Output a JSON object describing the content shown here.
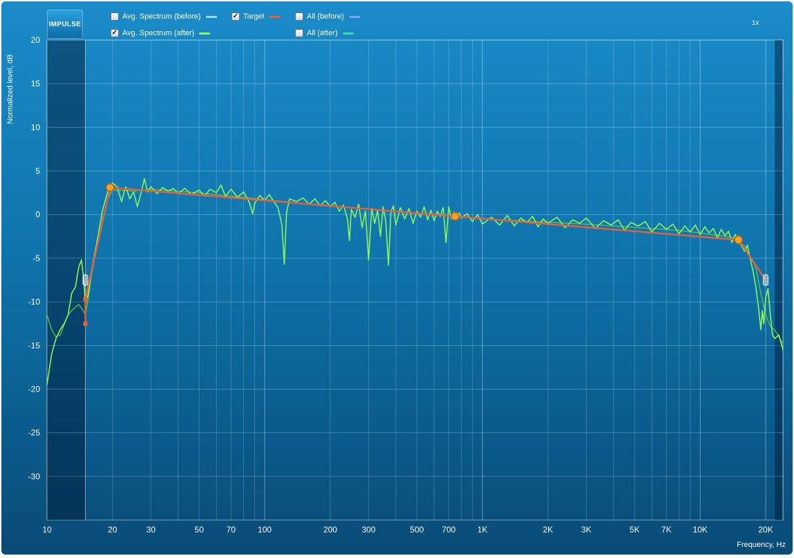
{
  "app": {
    "logo_text": "IMPULSE",
    "zoom_label": "1x"
  },
  "legend": [
    {
      "label": "Avg. Spectrum (before)",
      "checked": false,
      "color": "#9fd8f2"
    },
    {
      "label": "Target",
      "checked": true,
      "color": "#e8603a"
    },
    {
      "label": "All (before)",
      "checked": false,
      "color": "#7f9ef5"
    },
    {
      "label": "Avg. Spectrum (after)",
      "checked": true,
      "color": "#8cf55a"
    },
    {
      "label": "All (after)",
      "checked": false,
      "color": "#3fd7a4"
    }
  ],
  "chart_data": {
    "type": "line",
    "xscale": "log",
    "xlim": [
      10,
      24000
    ],
    "ylim": [
      -35,
      20
    ],
    "xlabel": "Frequency, Hz",
    "ylabel": "Normalized level, dB",
    "grid": true,
    "x_tick_labels": [
      {
        "value": 10,
        "label": "10"
      },
      {
        "value": 20,
        "label": "20"
      },
      {
        "value": 30,
        "label": "30"
      },
      {
        "value": 50,
        "label": "50"
      },
      {
        "value": 70,
        "label": "70"
      },
      {
        "value": 100,
        "label": "100"
      },
      {
        "value": 200,
        "label": "200"
      },
      {
        "value": 300,
        "label": "300"
      },
      {
        "value": 500,
        "label": "500"
      },
      {
        "value": 700,
        "label": "700"
      },
      {
        "value": 1000,
        "label": "1K"
      },
      {
        "value": 2000,
        "label": "2K"
      },
      {
        "value": 3000,
        "label": "3K"
      },
      {
        "value": 5000,
        "label": "5K"
      },
      {
        "value": 7000,
        "label": "7K"
      },
      {
        "value": 10000,
        "label": "10K"
      },
      {
        "value": 20000,
        "label": "20K"
      }
    ],
    "y_ticks": [
      20,
      15,
      10,
      5,
      0,
      -5,
      -10,
      -15,
      -20,
      -25,
      -30
    ],
    "excluded_ranges": [
      [
        10,
        15
      ],
      [
        22000,
        24000
      ]
    ],
    "target": {
      "color": "#e8603a",
      "points": [
        [
          15,
          -12.5
        ],
        [
          15,
          -9.7
        ],
        [
          19.5,
          3.1
        ],
        [
          750,
          -0.2
        ],
        [
          15000,
          -2.9
        ],
        [
          20000,
          -7.5
        ]
      ],
      "handles": [
        [
          19.5,
          3.1
        ],
        [
          750,
          -0.2
        ],
        [
          15000,
          -2.9
        ]
      ],
      "side_markers": [
        [
          15,
          -7.5
        ],
        [
          20000,
          -7.5
        ]
      ]
    },
    "series": [
      {
        "name": "Avg. Spectrum (after)",
        "color": "#8cf55a",
        "points": [
          [
            10,
            -19.5
          ],
          [
            10.5,
            -16
          ],
          [
            11,
            -14.2
          ],
          [
            11.5,
            -13.2
          ],
          [
            12,
            -12.5
          ],
          [
            12.5,
            -11.5
          ],
          [
            13,
            -9
          ],
          [
            13.5,
            -8.3
          ],
          [
            14,
            -6
          ],
          [
            14.4,
            -5.2
          ],
          [
            14.8,
            -7.8
          ],
          [
            15,
            -10.3
          ],
          [
            15.5,
            -9
          ],
          [
            16,
            -6.5
          ],
          [
            17,
            -3
          ],
          [
            18,
            0.5
          ],
          [
            19,
            2.6
          ],
          [
            20,
            3.6
          ],
          [
            21,
            3.2
          ],
          [
            22,
            1.5
          ],
          [
            23,
            3.2
          ],
          [
            24,
            1.8
          ],
          [
            25,
            2.6
          ],
          [
            26,
            0.9
          ],
          [
            27,
            2.4
          ],
          [
            28,
            4.1
          ],
          [
            29,
            2.6
          ],
          [
            30,
            3.2
          ],
          [
            32,
            2.4
          ],
          [
            34,
            3.1
          ],
          [
            36,
            2.7
          ],
          [
            38,
            3.0
          ],
          [
            40,
            2.4
          ],
          [
            43,
            3.0
          ],
          [
            46,
            2.3
          ],
          [
            50,
            2.8
          ],
          [
            53,
            2.1
          ],
          [
            56,
            2.9
          ],
          [
            60,
            2.5
          ],
          [
            63,
            3.4
          ],
          [
            66,
            2.1
          ],
          [
            70,
            2.9
          ],
          [
            75,
            2.0
          ],
          [
            80,
            2.6
          ],
          [
            85,
            1.4
          ],
          [
            88,
            0.1
          ],
          [
            90,
            1.3
          ],
          [
            95,
            2.2
          ],
          [
            100,
            1.6
          ],
          [
            105,
            2.3
          ],
          [
            110,
            1.5
          ],
          [
            115,
            0.8
          ],
          [
            120,
            -1.2
          ],
          [
            123,
            -5.7
          ],
          [
            126,
            0.2
          ],
          [
            130,
            1.8
          ],
          [
            140,
            1.5
          ],
          [
            150,
            1.9
          ],
          [
            160,
            1.2
          ],
          [
            170,
            1.8
          ],
          [
            180,
            1.0
          ],
          [
            190,
            1.6
          ],
          [
            200,
            0.9
          ],
          [
            210,
            1.4
          ],
          [
            220,
            0.4
          ],
          [
            230,
            1.1
          ],
          [
            240,
            -0.5
          ],
          [
            245,
            -3.0
          ],
          [
            250,
            0.6
          ],
          [
            260,
            -0.3
          ],
          [
            270,
            1.2
          ],
          [
            280,
            -1.5
          ],
          [
            290,
            0.4
          ],
          [
            300,
            -5.2
          ],
          [
            310,
            0.7
          ],
          [
            320,
            -1.0
          ],
          [
            330,
            0.5
          ],
          [
            340,
            -2.5
          ],
          [
            350,
            0.9
          ],
          [
            360,
            -0.8
          ],
          [
            370,
            -5.8
          ],
          [
            380,
            0.3
          ],
          [
            390,
            1.0
          ],
          [
            400,
            -1.2
          ],
          [
            420,
            0.8
          ],
          [
            440,
            -0.5
          ],
          [
            460,
            0.7
          ],
          [
            480,
            -1.0
          ],
          [
            500,
            0.4
          ],
          [
            520,
            -0.3
          ],
          [
            540,
            0.9
          ],
          [
            560,
            -0.6
          ],
          [
            580,
            0.5
          ],
          [
            600,
            -0.7
          ],
          [
            620,
            0.4
          ],
          [
            640,
            -0.2
          ],
          [
            660,
            0.8
          ],
          [
            680,
            -3.2
          ],
          [
            700,
            0.9
          ],
          [
            720,
            -0.5
          ],
          [
            740,
            0.3
          ],
          [
            760,
            -0.6
          ],
          [
            780,
            0.2
          ],
          [
            800,
            -0.4
          ],
          [
            850,
            0.1
          ],
          [
            900,
            -0.8
          ],
          [
            950,
            0.0
          ],
          [
            1000,
            -1.1
          ],
          [
            1100,
            -0.3
          ],
          [
            1200,
            -1.2
          ],
          [
            1300,
            -0.1
          ],
          [
            1400,
            -1.3
          ],
          [
            1500,
            -0.4
          ],
          [
            1600,
            -0.9
          ],
          [
            1700,
            -0.2
          ],
          [
            1800,
            -1.4
          ],
          [
            1900,
            -0.5
          ],
          [
            2000,
            -1.0
          ],
          [
            2200,
            -0.3
          ],
          [
            2400,
            -1.5
          ],
          [
            2600,
            -0.6
          ],
          [
            2800,
            -1.0
          ],
          [
            3000,
            -0.4
          ],
          [
            3300,
            -1.6
          ],
          [
            3600,
            -0.7
          ],
          [
            3900,
            -1.2
          ],
          [
            4200,
            -0.6
          ],
          [
            4500,
            -1.8
          ],
          [
            4800,
            -0.9
          ],
          [
            5200,
            -1.3
          ],
          [
            5600,
            -0.8
          ],
          [
            6000,
            -2.0
          ],
          [
            6500,
            -1.0
          ],
          [
            7000,
            -1.7
          ],
          [
            7500,
            -1.1
          ],
          [
            8000,
            -2.2
          ],
          [
            8500,
            -1.3
          ],
          [
            9000,
            -2.0
          ],
          [
            9500,
            -1.2
          ],
          [
            10000,
            -2.3
          ],
          [
            10500,
            -1.4
          ],
          [
            11000,
            -2.1
          ],
          [
            11500,
            -1.6
          ],
          [
            12000,
            -2.7
          ],
          [
            12500,
            -1.7
          ],
          [
            13000,
            -2.4
          ],
          [
            13500,
            -1.9
          ],
          [
            14000,
            -3.2
          ],
          [
            14500,
            -2.3
          ],
          [
            15000,
            -3.0
          ],
          [
            15500,
            -3.6
          ],
          [
            16000,
            -4.2
          ],
          [
            16500,
            -3.5
          ],
          [
            17000,
            -5.1
          ],
          [
            17500,
            -6.5
          ],
          [
            18000,
            -8.2
          ],
          [
            18500,
            -10.5
          ],
          [
            19000,
            -13.2
          ],
          [
            19300,
            -11
          ],
          [
            19600,
            -12.5
          ],
          [
            20000,
            -9.5
          ],
          [
            20500,
            -8.5
          ],
          [
            21000,
            -11.5
          ],
          [
            21500,
            -13.8
          ],
          [
            22000,
            -14.2
          ],
          [
            23000,
            -13.8
          ],
          [
            24000,
            -15.5
          ]
        ]
      },
      {
        "name": "All (after)",
        "color": "#66c23f",
        "points": [
          [
            10,
            -11.5
          ],
          [
            10.5,
            -13.2
          ],
          [
            11,
            -14.0
          ],
          [
            11.5,
            -13.8
          ],
          [
            12,
            -12.6
          ],
          [
            12.5,
            -11.5
          ],
          [
            13,
            -11.0
          ],
          [
            13.5,
            -10.6
          ],
          [
            14,
            -10.3
          ],
          [
            14.5,
            -10.8
          ],
          [
            15,
            -11.5
          ],
          [
            15.5,
            -9.5
          ],
          [
            16,
            -7.0
          ],
          [
            17,
            -3.5
          ],
          [
            18,
            -0.5
          ],
          [
            19,
            1.8
          ],
          [
            20,
            2.8
          ],
          [
            25,
            2.7
          ],
          [
            30,
            2.9
          ],
          [
            50,
            2.5
          ],
          [
            100,
            1.7
          ],
          [
            200,
            1.0
          ],
          [
            500,
            0.2
          ],
          [
            1000,
            -0.5
          ],
          [
            3000,
            -1.1
          ],
          [
            8000,
            -1.8
          ],
          [
            14000,
            -2.6
          ],
          [
            16000,
            -3.6
          ],
          [
            18000,
            -6.0
          ],
          [
            19000,
            -9.0
          ],
          [
            20000,
            -11.5
          ],
          [
            21000,
            -12.8
          ],
          [
            22000,
            -13.2
          ],
          [
            24000,
            -14.8
          ]
        ]
      }
    ]
  },
  "axes": {
    "x_title": "Frequency, Hz",
    "y_title": "Normalized level, dB"
  }
}
